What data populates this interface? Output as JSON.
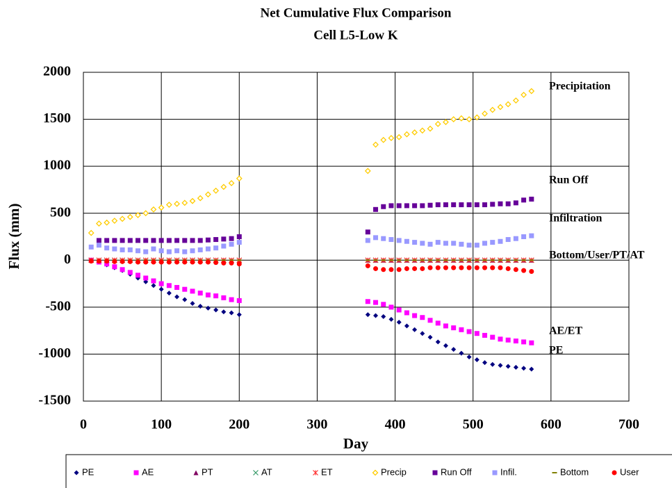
{
  "chart_data": {
    "type": "scatter",
    "title": "Net Cumulative Flux Comparison",
    "subtitle": "Cell L5-Low K",
    "xlabel": "Day",
    "ylabel": "Flux (mm)",
    "xlim": [
      0,
      700
    ],
    "xticks": [
      0,
      100,
      200,
      300,
      400,
      500,
      600,
      700
    ],
    "ylim": [
      -1500,
      2000
    ],
    "yticks": [
      -1500,
      -1000,
      -500,
      0,
      500,
      1000,
      1500,
      2000
    ],
    "grid": true,
    "legend": "bottom",
    "annotations": [
      "Precipitation",
      "Run Off",
      "Infiltration",
      "Bottom/User/PT/AT",
      "AE/ET",
      "PE"
    ],
    "x": [
      10,
      20,
      30,
      40,
      50,
      60,
      70,
      80,
      90,
      100,
      110,
      120,
      130,
      140,
      150,
      160,
      170,
      180,
      190,
      200,
      365,
      375,
      385,
      395,
      405,
      415,
      425,
      435,
      445,
      455,
      465,
      475,
      485,
      495,
      505,
      515,
      525,
      535,
      545,
      555,
      565,
      575
    ],
    "series": [
      {
        "name": "PE",
        "color": "#000080",
        "marker": "diamond",
        "values": [
          0,
          -20,
          -50,
          -80,
          -110,
          -150,
          -190,
          -230,
          -270,
          -310,
          -350,
          -390,
          -420,
          -460,
          -490,
          -510,
          -530,
          -550,
          -560,
          -580,
          -580,
          -590,
          -600,
          -630,
          -660,
          -700,
          -740,
          -780,
          -820,
          -870,
          -910,
          -950,
          -990,
          -1030,
          -1060,
          -1090,
          -1110,
          -1120,
          -1130,
          -1140,
          -1150,
          -1160
        ]
      },
      {
        "name": "AE",
        "color": "#ff00ff",
        "marker": "square",
        "values": [
          0,
          -20,
          -40,
          -70,
          -100,
          -130,
          -160,
          -190,
          -220,
          -250,
          -270,
          -290,
          -310,
          -330,
          -350,
          -370,
          -380,
          -400,
          -420,
          -430,
          -440,
          -450,
          -470,
          -500,
          -530,
          -560,
          -590,
          -610,
          -640,
          -670,
          -700,
          -720,
          -740,
          -760,
          -780,
          -800,
          -820,
          -840,
          -850,
          -860,
          -870,
          -880
        ]
      },
      {
        "name": "PT",
        "color": "#800060",
        "marker": "triangle",
        "values": [
          0,
          0,
          0,
          0,
          0,
          0,
          0,
          0,
          0,
          0,
          0,
          0,
          0,
          0,
          0,
          0,
          0,
          0,
          0,
          0,
          0,
          0,
          0,
          0,
          0,
          0,
          0,
          0,
          0,
          0,
          0,
          0,
          0,
          0,
          0,
          0,
          0,
          0,
          0,
          0,
          0,
          0
        ]
      },
      {
        "name": "AT",
        "color": "#339966",
        "marker": "x",
        "values": [
          0,
          0,
          0,
          0,
          0,
          0,
          0,
          0,
          0,
          0,
          0,
          0,
          0,
          0,
          0,
          0,
          0,
          0,
          0,
          0,
          0,
          0,
          0,
          0,
          0,
          0,
          0,
          0,
          0,
          0,
          0,
          0,
          0,
          0,
          0,
          0,
          0,
          0,
          0,
          0,
          0,
          0
        ]
      },
      {
        "name": "ET",
        "color": "#ff3333",
        "marker": "star",
        "values": [
          0,
          0,
          0,
          0,
          0,
          0,
          0,
          0,
          0,
          0,
          0,
          0,
          0,
          0,
          0,
          0,
          0,
          0,
          0,
          0,
          0,
          0,
          0,
          0,
          0,
          0,
          0,
          0,
          0,
          0,
          0,
          0,
          0,
          0,
          0,
          0,
          0,
          0,
          0,
          0,
          0,
          0
        ]
      },
      {
        "name": "Precip",
        "color": "#ffcc00",
        "marker": "hollow-diamond",
        "values": [
          290,
          390,
          400,
          420,
          440,
          460,
          480,
          500,
          540,
          560,
          590,
          600,
          610,
          630,
          660,
          700,
          740,
          780,
          820,
          870,
          950,
          1230,
          1280,
          1300,
          1310,
          1340,
          1360,
          1380,
          1400,
          1450,
          1470,
          1500,
          1510,
          1500,
          1520,
          1560,
          1600,
          1630,
          1660,
          1700,
          1760,
          1800
        ]
      },
      {
        "name": "Run Off",
        "color": "#660099",
        "marker": "square",
        "values": [
          null,
          210,
          210,
          210,
          210,
          210,
          210,
          210,
          210,
          210,
          210,
          210,
          210,
          210,
          210,
          215,
          220,
          225,
          230,
          250,
          300,
          540,
          570,
          580,
          580,
          580,
          580,
          580,
          585,
          590,
          590,
          590,
          590,
          590,
          590,
          590,
          595,
          600,
          600,
          610,
          640,
          650
        ]
      },
      {
        "name": "Infil.",
        "color": "#9999ff",
        "marker": "square",
        "values": [
          140,
          160,
          130,
          120,
          110,
          110,
          100,
          90,
          120,
          100,
          90,
          100,
          90,
          100,
          110,
          120,
          130,
          150,
          170,
          190,
          210,
          240,
          230,
          220,
          210,
          200,
          190,
          180,
          170,
          190,
          180,
          180,
          170,
          160,
          160,
          180,
          190,
          200,
          220,
          230,
          250,
          260
        ]
      },
      {
        "name": "Bottom",
        "color": "#808000",
        "marker": "dash",
        "values": [
          0,
          0,
          0,
          0,
          0,
          0,
          0,
          0,
          0,
          0,
          0,
          0,
          0,
          0,
          0,
          0,
          0,
          0,
          0,
          0,
          0,
          0,
          0,
          0,
          0,
          0,
          0,
          0,
          0,
          0,
          0,
          0,
          0,
          0,
          0,
          0,
          0,
          0,
          0,
          0,
          0,
          0
        ]
      },
      {
        "name": "User",
        "color": "#ff0000",
        "marker": "circle",
        "values": [
          -10,
          -10,
          -10,
          -15,
          -15,
          -15,
          -20,
          -20,
          -20,
          -20,
          -20,
          -20,
          -20,
          -20,
          -20,
          -20,
          -25,
          -30,
          -30,
          -40,
          -60,
          -90,
          -100,
          -100,
          -100,
          -90,
          -90,
          -90,
          -80,
          -80,
          -80,
          -80,
          -80,
          -80,
          -80,
          -80,
          -80,
          -80,
          -90,
          -100,
          -110,
          -120
        ]
      }
    ]
  }
}
